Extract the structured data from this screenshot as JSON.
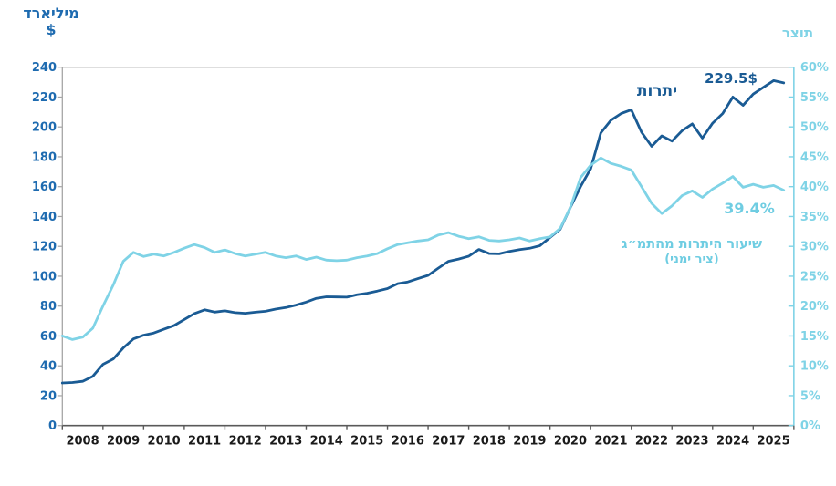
{
  "axis_left": {
    "title_line1": "מיליארד",
    "title_line2": "$",
    "tick_labels": [
      "240",
      "220",
      "200",
      "180",
      "160",
      "140",
      "120",
      "100",
      "80",
      "60",
      "40",
      "20",
      "0"
    ]
  },
  "axis_right": {
    "title": "תוצר",
    "tick_labels": [
      "60%",
      "55%",
      "50%",
      "45%",
      "40%",
      "35%",
      "30%",
      "25%",
      "20%",
      "15%",
      "10%",
      "5%",
      "0%"
    ]
  },
  "axis_x": {
    "year_labels": [
      "2008",
      "2009",
      "2010",
      "2011",
      "2012",
      "2013",
      "2014",
      "2015",
      "2016",
      "2017",
      "2018",
      "2019",
      "2020",
      "2021",
      "2022",
      "2023",
      "2024",
      "2025"
    ]
  },
  "annotations": {
    "reserves_series_label": "יתרות",
    "reserves_end_value": "229.5$",
    "share_end_value": "39.4%",
    "share_series_label": "שיעור היתרות מהתמ״ג",
    "share_series_sublabel": "(ציר ימני)"
  },
  "colors": {
    "reserves_line": "#1a5b94",
    "share_line": "#7fd3e6",
    "left_text": "#1e6bb0",
    "right_text": "#7fd3e6",
    "dark_annotation": "#1a5b94",
    "light_annotation": "#6fcde2",
    "year_text": "#1a1a1a",
    "axis_gray": "#a6a6a6",
    "bottom_axis": "#595959"
  },
  "chart_data": {
    "type": "line",
    "title": "",
    "x_start": 2008,
    "x_step": 0.25,
    "x_tick_years": [
      2008,
      2009,
      2010,
      2011,
      2012,
      2013,
      2014,
      2015,
      2016,
      2017,
      2018,
      2019,
      2020,
      2021,
      2022,
      2023,
      2024,
      2025
    ],
    "ylim_left": [
      0,
      240
    ],
    "ylim_right": [
      0,
      60
    ],
    "left_axis_ticks": [
      240,
      220,
      200,
      180,
      160,
      140,
      120,
      100,
      80,
      60,
      40,
      20,
      0
    ],
    "right_axis_ticks_percent": [
      60,
      55,
      50,
      45,
      40,
      35,
      30,
      25,
      20,
      15,
      10,
      5,
      0
    ],
    "grid": false,
    "legend_position": "inline-annotations",
    "series": [
      {
        "name": "יתרות",
        "axis": "left",
        "unit": "מיליארד $",
        "end_label": "229.5$",
        "values": [
          28.5,
          28.8,
          29.6,
          33.0,
          41.0,
          44.5,
          52.0,
          58.0,
          60.5,
          62.0,
          64.5,
          67.0,
          71.0,
          75.0,
          77.5,
          76.0,
          76.8,
          75.6,
          75.2,
          75.9,
          76.5,
          78.0,
          79.0,
          80.7,
          82.7,
          85.2,
          86.2,
          86.1,
          86.0,
          87.6,
          88.6,
          90.1,
          91.7,
          95.0,
          96.2,
          98.4,
          100.6,
          105.4,
          110.0,
          111.5,
          113.4,
          117.9,
          115.2,
          115.0,
          116.6,
          117.8,
          118.7,
          120.4,
          126.0,
          131.5,
          146.0,
          160.0,
          172.0,
          196.0,
          204.5,
          209.0,
          211.5,
          196.5,
          187.0,
          194.0,
          190.5,
          197.5,
          202.0,
          192.5,
          202.5,
          209.0,
          220.0,
          214.5,
          222.0,
          226.5,
          231.0,
          229.5
        ]
      },
      {
        "name": "שיעור היתרות מהתמ״ג (ציר ימני)",
        "axis": "right",
        "unit": "%",
        "end_label": "39.4%",
        "values": [
          15.0,
          14.4,
          14.8,
          16.3,
          20.0,
          23.5,
          27.5,
          29.0,
          28.3,
          28.7,
          28.4,
          29.0,
          29.7,
          30.3,
          29.8,
          29.0,
          29.4,
          28.8,
          28.4,
          28.7,
          29.0,
          28.4,
          28.1,
          28.4,
          27.8,
          28.2,
          27.7,
          27.6,
          27.7,
          28.1,
          28.4,
          28.8,
          29.6,
          30.3,
          30.6,
          30.9,
          31.1,
          31.9,
          32.3,
          31.7,
          31.3,
          31.6,
          31.0,
          30.9,
          31.1,
          31.4,
          30.9,
          31.3,
          31.6,
          33.0,
          36.5,
          41.5,
          43.6,
          44.8,
          43.9,
          43.4,
          42.8,
          40.0,
          37.2,
          35.5,
          36.8,
          38.5,
          39.3,
          38.2,
          39.6,
          40.6,
          41.7,
          39.9,
          40.4,
          39.9,
          40.2,
          39.4
        ]
      }
    ]
  }
}
